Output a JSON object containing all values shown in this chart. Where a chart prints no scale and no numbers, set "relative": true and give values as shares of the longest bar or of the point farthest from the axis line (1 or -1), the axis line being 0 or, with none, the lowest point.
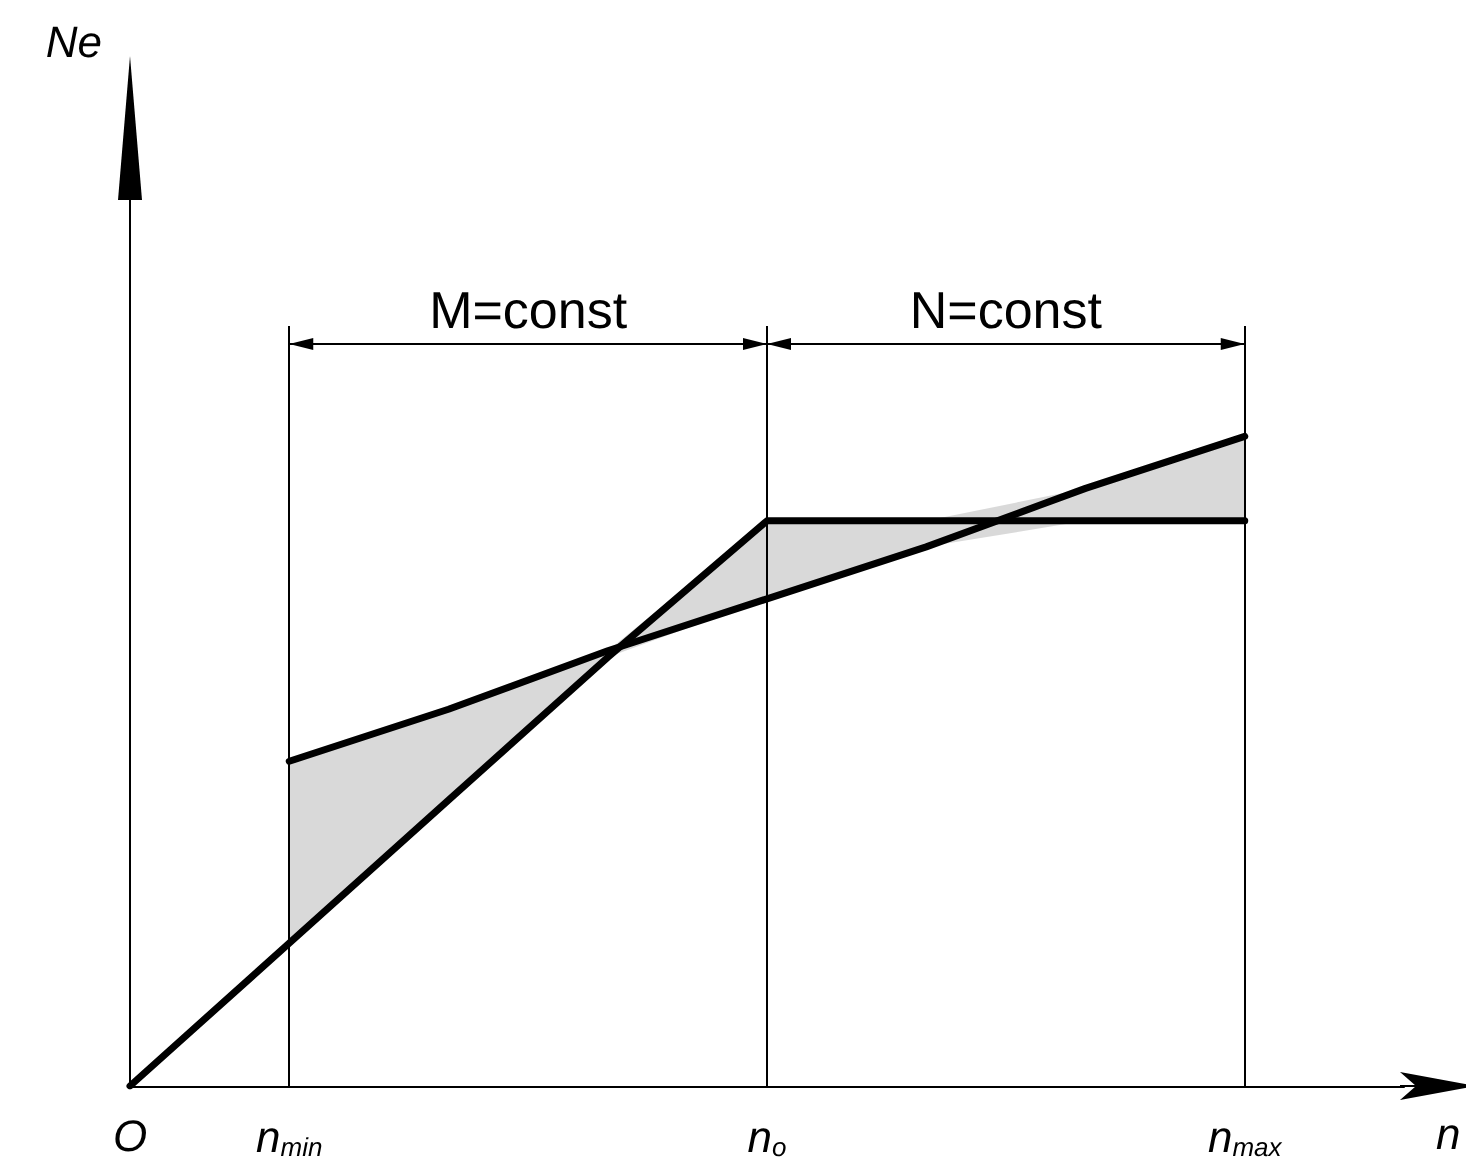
{
  "chart_data": {
    "type": "line",
    "relative": true,
    "xlabel": "n",
    "categories": [
      "O",
      "n$_{min}$",
      null,
      null,
      "n$_{o}$",
      null,
      null,
      "n$_{max}$",
      null
    ],
    "series": [
      {
        "color": "#000000",
        "values": [
          0,
          0.22,
          0.44,
          0.66,
          0.87,
          0.87,
          0.87,
          0.87,
          null
        ]
      },
      {
        "color": "#000000",
        "values": [
          null,
          0.5,
          0.58,
          0.67,
          0.75,
          0.83,
          0.92,
          1,
          null
        ],
        "lower": [
          null,
          0.22,
          0.44,
          0.66,
          0.75,
          0.83,
          0.87,
          0.87,
          null
        ],
        "upper": [
          null,
          0.5,
          0.58,
          0.67,
          0.87,
          0.87,
          0.92,
          1,
          null
        ]
      }
    ],
    "ref_lines": [
      {
        "axis": "x",
        "value": "n$_{min}$"
      },
      {
        "axis": "x",
        "value": "n$_{o}$"
      },
      {
        "axis": "x",
        "value": "n$_{max}$"
      }
    ],
    "annotations": [
      "M=const",
      "N=const",
      "Ne"
    ],
    "marker": "none",
    "grid": false
  }
}
